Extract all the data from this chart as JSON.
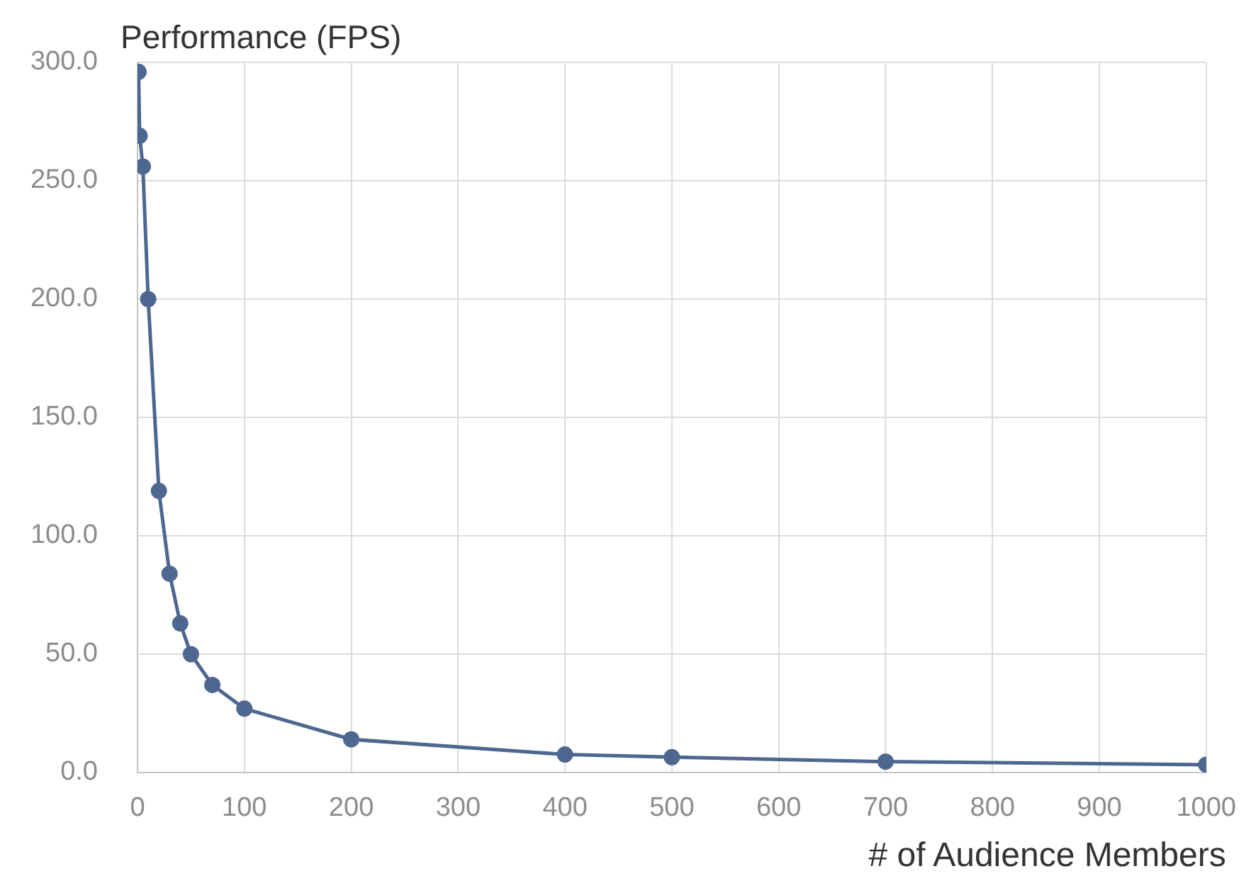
{
  "chart_data": {
    "type": "line",
    "ylabel": "Performance (FPS)",
    "xlabel": "# of Audience Members",
    "x": [
      1,
      2,
      5,
      10,
      20,
      30,
      40,
      50,
      70,
      100,
      200,
      400,
      500,
      700,
      1000
    ],
    "series": [
      {
        "color": "#4e6790",
        "values": [
          296,
          269,
          256,
          200,
          119,
          84,
          63,
          50,
          37,
          27,
          14,
          7.6,
          6.5,
          4.6,
          3.3
        ]
      }
    ],
    "xlim": [
      0,
      1000
    ],
    "xticks": [
      0,
      100,
      200,
      300,
      400,
      500,
      600,
      700,
      800,
      900,
      1000
    ],
    "ylim": [
      0,
      300
    ],
    "yticks": [
      {
        "value": 0,
        "label": "0.0"
      },
      {
        "value": 50,
        "label": "50.0"
      },
      {
        "value": 100,
        "label": "100.0"
      },
      {
        "value": 150,
        "label": "150.0"
      },
      {
        "value": 200,
        "label": "200.0"
      },
      {
        "value": 250,
        "label": "250.0"
      },
      {
        "value": 300,
        "label": "300.0"
      }
    ],
    "grid": true,
    "marker": "circle",
    "line_style": "solid"
  }
}
